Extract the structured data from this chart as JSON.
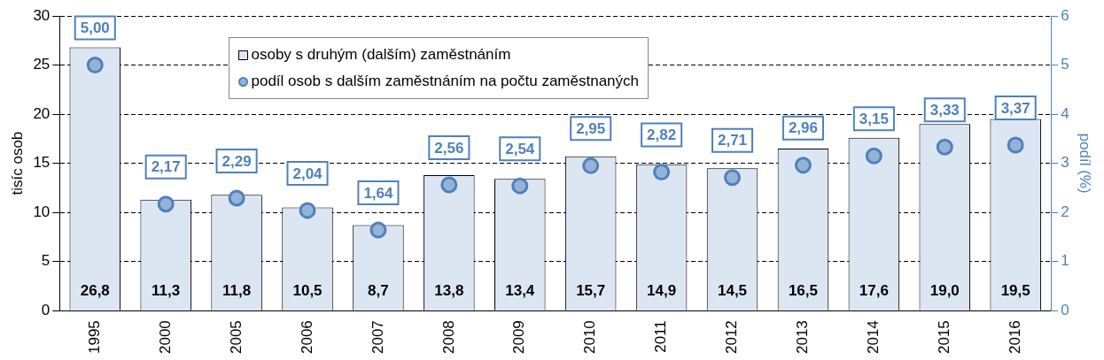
{
  "chart_data": {
    "type": "bar",
    "categories": [
      "1995",
      "2000",
      "2005",
      "2006",
      "2007",
      "2008",
      "2009",
      "2010",
      "2011",
      "2012",
      "2013",
      "2014",
      "2015",
      "2016"
    ],
    "ylabel": "tisíc osob",
    "y2label": "podíl (%)",
    "ylim": [
      0,
      30
    ],
    "yticks": [
      0,
      5,
      10,
      15,
      20,
      25,
      30
    ],
    "y2lim": [
      0,
      6
    ],
    "y2ticks": [
      0,
      1,
      2,
      3,
      4,
      5,
      6
    ],
    "grid": "y",
    "legend": "top",
    "series": [
      {
        "name": "osoby s druhým (dalším) zaměstnáním",
        "color": "#dce6f2",
        "values": [
          26.8,
          11.3,
          11.8,
          10.5,
          8.7,
          13.8,
          13.4,
          15.7,
          14.9,
          14.5,
          16.5,
          17.6,
          19.0,
          19.5
        ],
        "value_labels": [
          "26,8",
          "11,3",
          "11,8",
          "10,5",
          "8,7",
          "13,8",
          "13,4",
          "15,7",
          "14,9",
          "14,5",
          "16,5",
          "17,6",
          "19,0",
          "19,5"
        ]
      },
      {
        "type": "scatter",
        "axis": "y2",
        "marker": "circle",
        "name": "podíl osob s dalším zaměstnáním na počtu zaměstnaných",
        "color": "#95b3d7",
        "values": [
          5.0,
          2.17,
          2.29,
          2.04,
          1.64,
          2.56,
          2.54,
          2.95,
          2.82,
          2.71,
          2.96,
          3.15,
          3.33,
          3.37
        ],
        "value_labels": [
          "5,00",
          "2,17",
          "2,29",
          "2,04",
          "1,64",
          "2,56",
          "2,54",
          "2,95",
          "2,82",
          "2,71",
          "2,96",
          "3,15",
          "3,33",
          "3,37"
        ]
      }
    ]
  }
}
